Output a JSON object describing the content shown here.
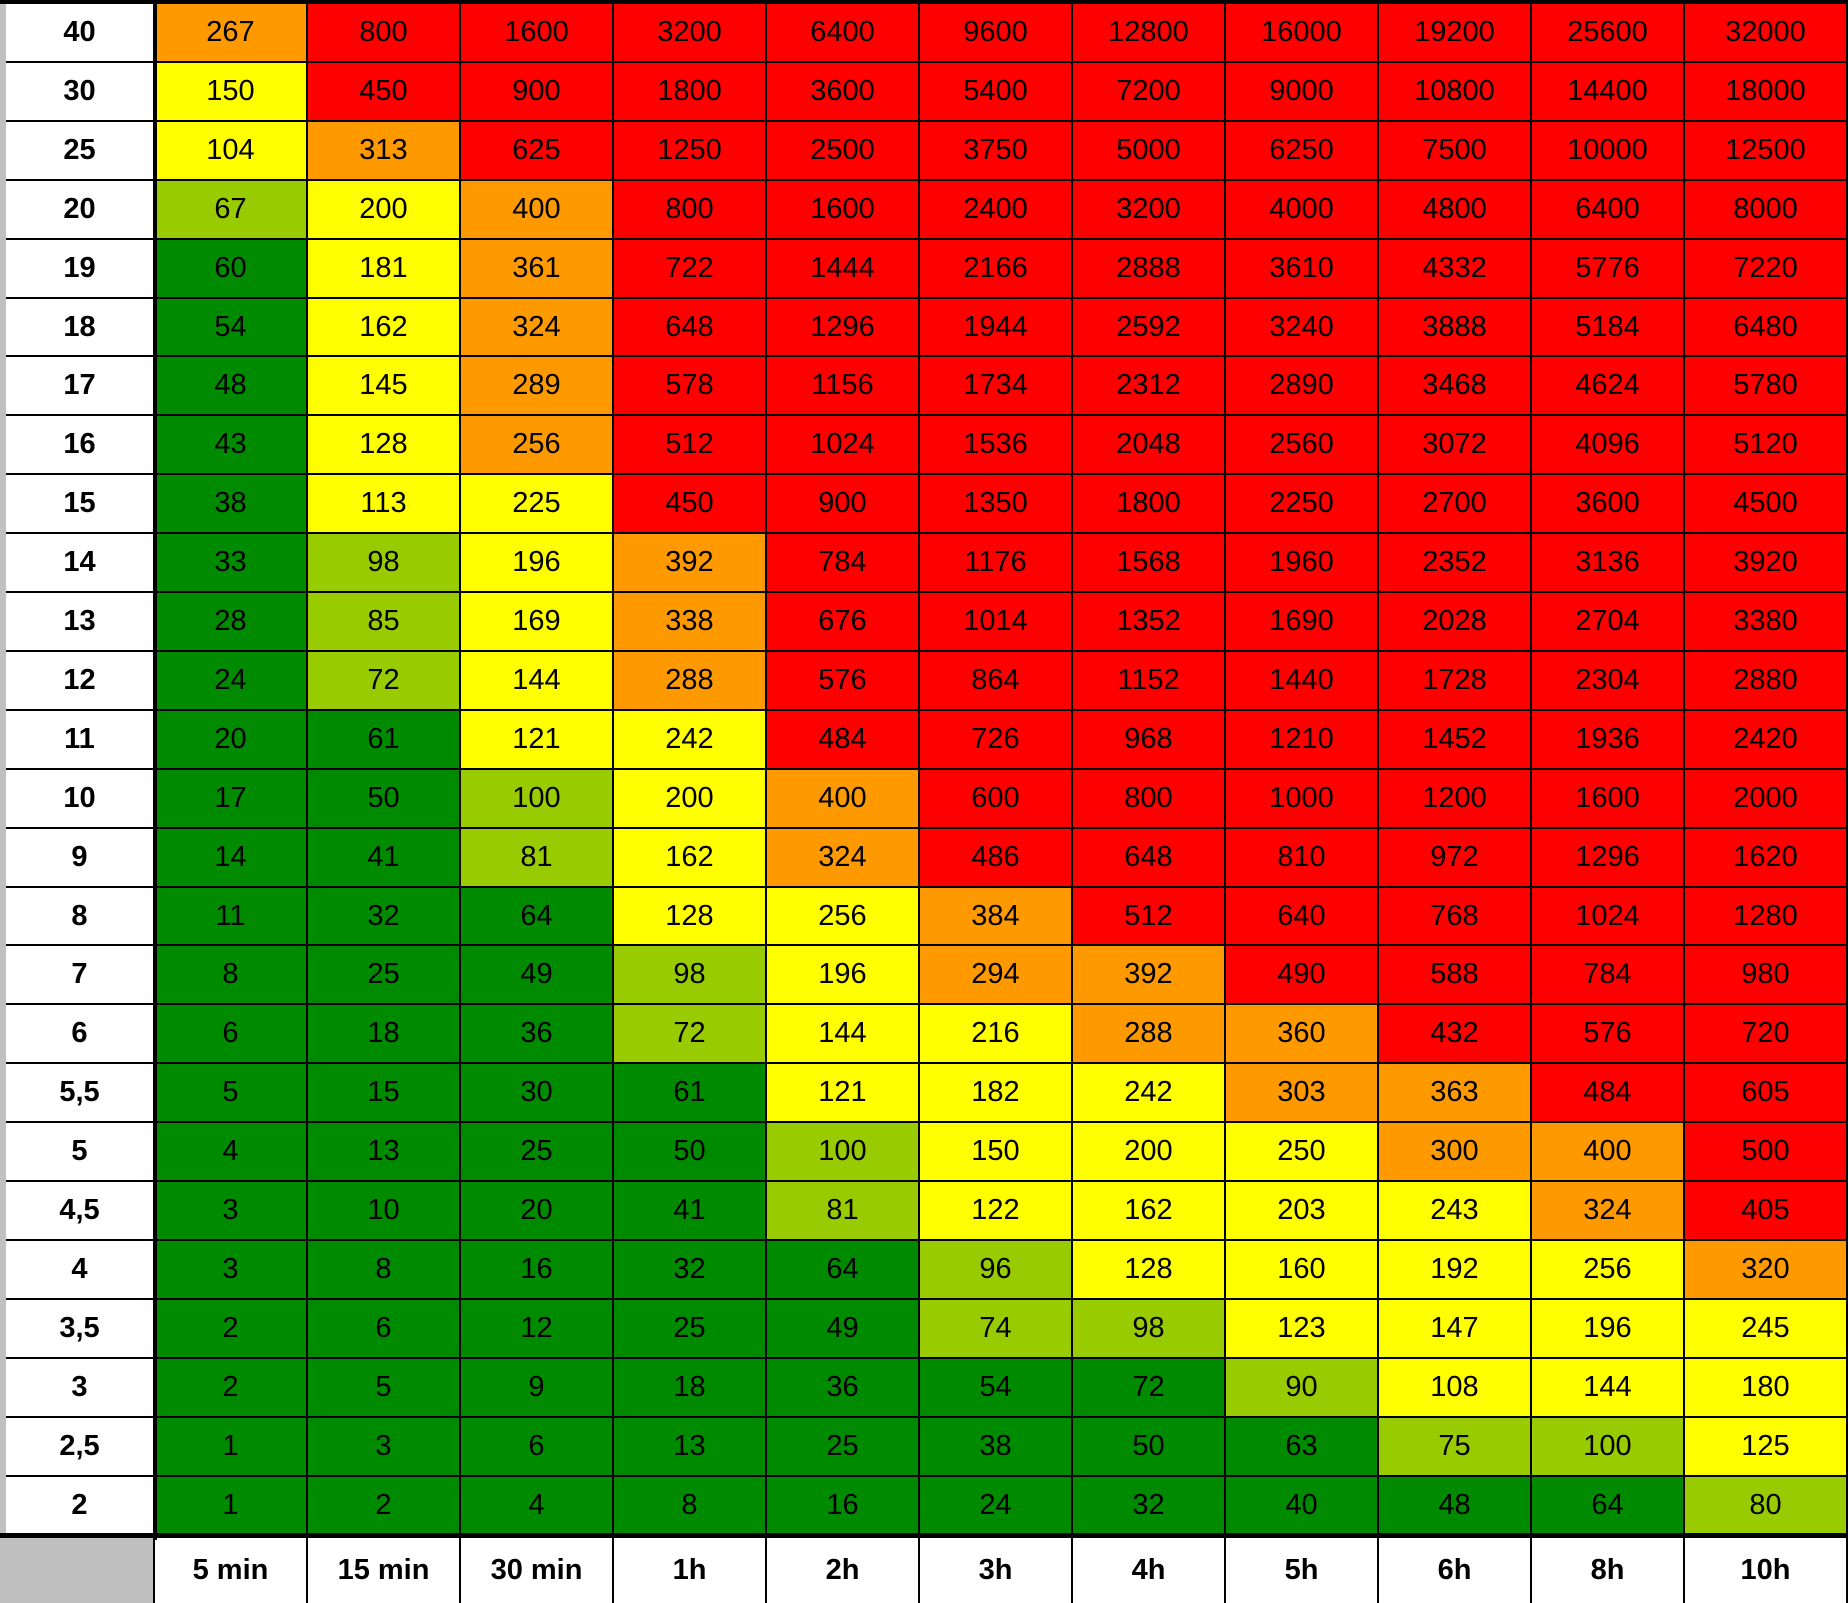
{
  "colors": {
    "dark_green": "#008a00",
    "light_green": "#99cc00",
    "yellow": "#ffff00",
    "orange": "#ff9900",
    "red": "#ff0000"
  },
  "column_headers": [
    "5 min",
    "15 min",
    "30 min",
    "1h",
    "2h",
    "3h",
    "4h",
    "5h",
    "6h",
    "8h",
    "10h"
  ],
  "rows": [
    {
      "label": "40",
      "values": [
        "267",
        "800",
        "1600",
        "3200",
        "6400",
        "9600",
        "12800",
        "16000",
        "19200",
        "25600",
        "32000"
      ],
      "levels": [
        "O",
        "R",
        "R",
        "R",
        "R",
        "R",
        "R",
        "R",
        "R",
        "R",
        "R"
      ]
    },
    {
      "label": "30",
      "values": [
        "150",
        "450",
        "900",
        "1800",
        "3600",
        "5400",
        "7200",
        "9000",
        "10800",
        "14400",
        "18000"
      ],
      "levels": [
        "Y",
        "R",
        "R",
        "R",
        "R",
        "R",
        "R",
        "R",
        "R",
        "R",
        "R"
      ]
    },
    {
      "label": "25",
      "values": [
        "104",
        "313",
        "625",
        "1250",
        "2500",
        "3750",
        "5000",
        "6250",
        "7500",
        "10000",
        "12500"
      ],
      "levels": [
        "Y",
        "O",
        "R",
        "R",
        "R",
        "R",
        "R",
        "R",
        "R",
        "R",
        "R"
      ]
    },
    {
      "label": "20",
      "values": [
        "67",
        "200",
        "400",
        "800",
        "1600",
        "2400",
        "3200",
        "4000",
        "4800",
        "6400",
        "8000"
      ],
      "levels": [
        "L",
        "Y",
        "O",
        "R",
        "R",
        "R",
        "R",
        "R",
        "R",
        "R",
        "R"
      ]
    },
    {
      "label": "19",
      "values": [
        "60",
        "181",
        "361",
        "722",
        "1444",
        "2166",
        "2888",
        "3610",
        "4332",
        "5776",
        "7220"
      ],
      "levels": [
        "G",
        "Y",
        "O",
        "R",
        "R",
        "R",
        "R",
        "R",
        "R",
        "R",
        "R"
      ]
    },
    {
      "label": "18",
      "values": [
        "54",
        "162",
        "324",
        "648",
        "1296",
        "1944",
        "2592",
        "3240",
        "3888",
        "5184",
        "6480"
      ],
      "levels": [
        "G",
        "Y",
        "O",
        "R",
        "R",
        "R",
        "R",
        "R",
        "R",
        "R",
        "R"
      ]
    },
    {
      "label": "17",
      "values": [
        "48",
        "145",
        "289",
        "578",
        "1156",
        "1734",
        "2312",
        "2890",
        "3468",
        "4624",
        "5780"
      ],
      "levels": [
        "G",
        "Y",
        "O",
        "R",
        "R",
        "R",
        "R",
        "R",
        "R",
        "R",
        "R"
      ]
    },
    {
      "label": "16",
      "values": [
        "43",
        "128",
        "256",
        "512",
        "1024",
        "1536",
        "2048",
        "2560",
        "3072",
        "4096",
        "5120"
      ],
      "levels": [
        "G",
        "Y",
        "O",
        "R",
        "R",
        "R",
        "R",
        "R",
        "R",
        "R",
        "R"
      ]
    },
    {
      "label": "15",
      "values": [
        "38",
        "113",
        "225",
        "450",
        "900",
        "1350",
        "1800",
        "2250",
        "2700",
        "3600",
        "4500"
      ],
      "levels": [
        "G",
        "Y",
        "Y",
        "R",
        "R",
        "R",
        "R",
        "R",
        "R",
        "R",
        "R"
      ]
    },
    {
      "label": "14",
      "values": [
        "33",
        "98",
        "196",
        "392",
        "784",
        "1176",
        "1568",
        "1960",
        "2352",
        "3136",
        "3920"
      ],
      "levels": [
        "G",
        "L",
        "Y",
        "O",
        "R",
        "R",
        "R",
        "R",
        "R",
        "R",
        "R"
      ]
    },
    {
      "label": "13",
      "values": [
        "28",
        "85",
        "169",
        "338",
        "676",
        "1014",
        "1352",
        "1690",
        "2028",
        "2704",
        "3380"
      ],
      "levels": [
        "G",
        "L",
        "Y",
        "O",
        "R",
        "R",
        "R",
        "R",
        "R",
        "R",
        "R"
      ]
    },
    {
      "label": "12",
      "values": [
        "24",
        "72",
        "144",
        "288",
        "576",
        "864",
        "1152",
        "1440",
        "1728",
        "2304",
        "2880"
      ],
      "levels": [
        "G",
        "L",
        "Y",
        "O",
        "R",
        "R",
        "R",
        "R",
        "R",
        "R",
        "R"
      ]
    },
    {
      "label": "11",
      "values": [
        "20",
        "61",
        "121",
        "242",
        "484",
        "726",
        "968",
        "1210",
        "1452",
        "1936",
        "2420"
      ],
      "levels": [
        "G",
        "G",
        "Y",
        "Y",
        "R",
        "R",
        "R",
        "R",
        "R",
        "R",
        "R"
      ]
    },
    {
      "label": "10",
      "values": [
        "17",
        "50",
        "100",
        "200",
        "400",
        "600",
        "800",
        "1000",
        "1200",
        "1600",
        "2000"
      ],
      "levels": [
        "G",
        "G",
        "L",
        "Y",
        "O",
        "R",
        "R",
        "R",
        "R",
        "R",
        "R"
      ]
    },
    {
      "label": "9",
      "values": [
        "14",
        "41",
        "81",
        "162",
        "324",
        "486",
        "648",
        "810",
        "972",
        "1296",
        "1620"
      ],
      "levels": [
        "G",
        "G",
        "L",
        "Y",
        "O",
        "R",
        "R",
        "R",
        "R",
        "R",
        "R"
      ]
    },
    {
      "label": "8",
      "values": [
        "11",
        "32",
        "64",
        "128",
        "256",
        "384",
        "512",
        "640",
        "768",
        "1024",
        "1280"
      ],
      "levels": [
        "G",
        "G",
        "G",
        "Y",
        "Y",
        "O",
        "R",
        "R",
        "R",
        "R",
        "R"
      ]
    },
    {
      "label": "7",
      "values": [
        "8",
        "25",
        "49",
        "98",
        "196",
        "294",
        "392",
        "490",
        "588",
        "784",
        "980"
      ],
      "levels": [
        "G",
        "G",
        "G",
        "L",
        "Y",
        "O",
        "O",
        "R",
        "R",
        "R",
        "R"
      ]
    },
    {
      "label": "6",
      "values": [
        "6",
        "18",
        "36",
        "72",
        "144",
        "216",
        "288",
        "360",
        "432",
        "576",
        "720"
      ],
      "levels": [
        "G",
        "G",
        "G",
        "L",
        "Y",
        "Y",
        "O",
        "O",
        "R",
        "R",
        "R"
      ]
    },
    {
      "label": "5,5",
      "values": [
        "5",
        "15",
        "30",
        "61",
        "121",
        "182",
        "242",
        "303",
        "363",
        "484",
        "605"
      ],
      "levels": [
        "G",
        "G",
        "G",
        "G",
        "Y",
        "Y",
        "Y",
        "O",
        "O",
        "R",
        "R"
      ]
    },
    {
      "label": "5",
      "values": [
        "4",
        "13",
        "25",
        "50",
        "100",
        "150",
        "200",
        "250",
        "300",
        "400",
        "500"
      ],
      "levels": [
        "G",
        "G",
        "G",
        "G",
        "L",
        "Y",
        "Y",
        "Y",
        "O",
        "O",
        "R"
      ]
    },
    {
      "label": "4,5",
      "values": [
        "3",
        "10",
        "20",
        "41",
        "81",
        "122",
        "162",
        "203",
        "243",
        "324",
        "405"
      ],
      "levels": [
        "G",
        "G",
        "G",
        "G",
        "L",
        "Y",
        "Y",
        "Y",
        "Y",
        "O",
        "R"
      ]
    },
    {
      "label": "4",
      "values": [
        "3",
        "8",
        "16",
        "32",
        "64",
        "96",
        "128",
        "160",
        "192",
        "256",
        "320"
      ],
      "levels": [
        "G",
        "G",
        "G",
        "G",
        "G",
        "L",
        "Y",
        "Y",
        "Y",
        "Y",
        "O"
      ]
    },
    {
      "label": "3,5",
      "values": [
        "2",
        "6",
        "12",
        "25",
        "49",
        "74",
        "98",
        "123",
        "147",
        "196",
        "245"
      ],
      "levels": [
        "G",
        "G",
        "G",
        "G",
        "G",
        "L",
        "L",
        "Y",
        "Y",
        "Y",
        "Y"
      ]
    },
    {
      "label": "3",
      "values": [
        "2",
        "5",
        "9",
        "18",
        "36",
        "54",
        "72",
        "90",
        "108",
        "144",
        "180"
      ],
      "levels": [
        "G",
        "G",
        "G",
        "G",
        "G",
        "G",
        "G",
        "L",
        "Y",
        "Y",
        "Y"
      ]
    },
    {
      "label": "2,5",
      "values": [
        "1",
        "3",
        "6",
        "13",
        "25",
        "38",
        "50",
        "63",
        "75",
        "100",
        "125"
      ],
      "levels": [
        "G",
        "G",
        "G",
        "G",
        "G",
        "G",
        "G",
        "G",
        "L",
        "L",
        "Y"
      ]
    },
    {
      "label": "2",
      "values": [
        "1",
        "2",
        "4",
        "8",
        "16",
        "24",
        "32",
        "40",
        "48",
        "64",
        "80"
      ],
      "levels": [
        "G",
        "G",
        "G",
        "G",
        "G",
        "G",
        "G",
        "G",
        "G",
        "G",
        "L"
      ]
    }
  ]
}
